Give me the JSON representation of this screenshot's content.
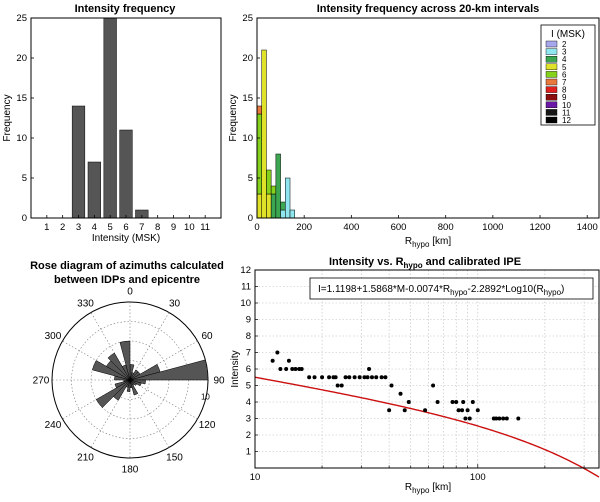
{
  "chart_data": [
    {
      "id": "intensity_frequency",
      "type": "bar",
      "title": "Intensity frequency",
      "xlabel": "Intensity (MSK)",
      "ylabel": "Frequency",
      "categories": [
        "1",
        "2",
        "3",
        "4",
        "5",
        "6",
        "7",
        "8",
        "9",
        "10",
        "11"
      ],
      "values": [
        0,
        0,
        14,
        7,
        25,
        11,
        1,
        0,
        0,
        0,
        0
      ],
      "xlim": [
        0,
        12
      ],
      "ylim": [
        0,
        25
      ],
      "yticks": [
        0,
        5,
        10,
        15,
        20,
        25
      ],
      "bar_color": "#555555",
      "grid": false
    },
    {
      "id": "intensity_by_distance",
      "type": "bar",
      "stacked": true,
      "title": "Intensity frequency across 20-km intervals",
      "xlabel": "km",
      "xlabel_main": "R",
      "xlabel_sub": "hypo",
      "ylabel": "Frequency",
      "xlim": [
        0,
        1450
      ],
      "ylim": [
        0,
        25
      ],
      "xticks": [
        0,
        200,
        400,
        600,
        800,
        1000,
        1200,
        1400
      ],
      "yticks": [
        0,
        5,
        10,
        15,
        20,
        25
      ],
      "legend_title": "I (MSK)",
      "legend_position": "top-right",
      "classes": [
        {
          "label": "2",
          "color": "#a7a7ee"
        },
        {
          "label": "3",
          "color": "#8fe6ee"
        },
        {
          "label": "4",
          "color": "#3ca651"
        },
        {
          "label": "5",
          "color": "#e0e22a"
        },
        {
          "label": "6",
          "color": "#86d11c"
        },
        {
          "label": "7",
          "color": "#e8783c"
        },
        {
          "label": "8",
          "color": "#e0201c"
        },
        {
          "label": "9",
          "color": "#8b0d0d"
        },
        {
          "label": "10",
          "color": "#6b1aa8"
        },
        {
          "label": "11",
          "color": "#161616"
        },
        {
          "label": "12",
          "color": "#000000"
        }
      ],
      "bin_width_km": 20,
      "bins": [
        {
          "x0": 0,
          "counts": {
            "5": 3,
            "6": 10,
            "7": 1
          }
        },
        {
          "x0": 20,
          "counts": {
            "5": 21
          }
        },
        {
          "x0": 40,
          "counts": {
            "5": 3,
            "6": 3
          }
        },
        {
          "x0": 60,
          "counts": {
            "4": 3,
            "6": 1
          }
        },
        {
          "x0": 80,
          "counts": {
            "4": 8
          }
        },
        {
          "x0": 100,
          "counts": {
            "3": 1,
            "4": 1
          }
        },
        {
          "x0": 120,
          "counts": {
            "3": 5
          }
        },
        {
          "x0": 140,
          "counts": {
            "3": 1
          }
        }
      ]
    },
    {
      "id": "azimuth_rose",
      "type": "rose",
      "title_lines": [
        "Rose diagram of azimuths calculated",
        "between  IDPs and epicentre"
      ],
      "angle_labels": [
        "0",
        "30",
        "60",
        "90",
        "120",
        "150",
        "180",
        "210",
        "240",
        "270",
        "300",
        "330"
      ],
      "radial_max": 10,
      "radial_tick_label": "10",
      "sector_width_deg": 15,
      "sectors": [
        {
          "center": 7.5,
          "value": 2
        },
        {
          "center": 22.5,
          "value": 1
        },
        {
          "center": 37.5,
          "value": 1.5
        },
        {
          "center": 52.5,
          "value": 1.5
        },
        {
          "center": 67.5,
          "value": 4
        },
        {
          "center": 82.5,
          "value": 10
        },
        {
          "center": 97.5,
          "value": 2
        },
        {
          "center": 112.5,
          "value": 1.5
        },
        {
          "center": 127.5,
          "value": 1
        },
        {
          "center": 142.5,
          "value": 0.8
        },
        {
          "center": 157.5,
          "value": 2
        },
        {
          "center": 172.5,
          "value": 1
        },
        {
          "center": 187.5,
          "value": 1.5
        },
        {
          "center": 202.5,
          "value": 1
        },
        {
          "center": 217.5,
          "value": 3
        },
        {
          "center": 232.5,
          "value": 5
        },
        {
          "center": 247.5,
          "value": 2
        },
        {
          "center": 262.5,
          "value": 0.8
        },
        {
          "center": 277.5,
          "value": 2
        },
        {
          "center": 292.5,
          "value": 5
        },
        {
          "center": 307.5,
          "value": 3.5
        },
        {
          "center": 322.5,
          "value": 4
        },
        {
          "center": 337.5,
          "value": 2
        },
        {
          "center": 352.5,
          "value": 5
        }
      ],
      "fill": "#555555"
    },
    {
      "id": "intensity_vs_distance",
      "type": "scatter",
      "title_prefix": "Intensity vs. R",
      "title_sub": "hypo",
      "title_suffix": " and calibrated IPE",
      "xlabel_main": "R",
      "xlabel_sub": "hypo",
      "xlabel_unit": "[km]",
      "ylabel": "Intensity",
      "x_scale": "log",
      "xlim": [
        10,
        350
      ],
      "ylim": [
        0,
        12
      ],
      "xtick_labels": [
        "10",
        "100"
      ],
      "yticks": [
        1,
        2,
        3,
        4,
        5,
        6,
        7,
        8,
        9,
        10,
        11,
        12
      ],
      "grid": true,
      "equation_parts": [
        "I=1.1198+1.5868*M-0.0074*R",
        "hypo",
        "-2.2892*Log10(R",
        "hypo",
        ")"
      ],
      "magnitude": 4.25,
      "points": [
        [
          12,
          6.5
        ],
        [
          12.6,
          7
        ],
        [
          13,
          6
        ],
        [
          13.8,
          6
        ],
        [
          14.2,
          6.5
        ],
        [
          14.7,
          6
        ],
        [
          15.2,
          6
        ],
        [
          15.8,
          6
        ],
        [
          16.2,
          6
        ],
        [
          17.5,
          5.5
        ],
        [
          18.5,
          5.5
        ],
        [
          20,
          5.5
        ],
        [
          21.5,
          5.5
        ],
        [
          22.5,
          5.5
        ],
        [
          23,
          5.5
        ],
        [
          23.5,
          5
        ],
        [
          24.5,
          5
        ],
        [
          25.5,
          5.5
        ],
        [
          26.5,
          5.5
        ],
        [
          28,
          5.5
        ],
        [
          29.5,
          5.5
        ],
        [
          31,
          5.5
        ],
        [
          32,
          5.5
        ],
        [
          32.5,
          6
        ],
        [
          33.5,
          5.5
        ],
        [
          35,
          5.5
        ],
        [
          37,
          5.5
        ],
        [
          38.5,
          5.5
        ],
        [
          40,
          3.5
        ],
        [
          41,
          5
        ],
        [
          45,
          4.5
        ],
        [
          47,
          3.5
        ],
        [
          49,
          4
        ],
        [
          58,
          3.5
        ],
        [
          63,
          5
        ],
        [
          66,
          4
        ],
        [
          77,
          4
        ],
        [
          80,
          4
        ],
        [
          82,
          3.5
        ],
        [
          85,
          3.5
        ],
        [
          86,
          4
        ],
        [
          88,
          3
        ],
        [
          90,
          3.5
        ],
        [
          92,
          3
        ],
        [
          95,
          4
        ],
        [
          100,
          3.5
        ],
        [
          118,
          3
        ],
        [
          121,
          3
        ],
        [
          125,
          3
        ],
        [
          130,
          3
        ],
        [
          135,
          3
        ],
        [
          152,
          3
        ]
      ],
      "point_color": "#000000",
      "curve_color": "#cc1010"
    }
  ]
}
